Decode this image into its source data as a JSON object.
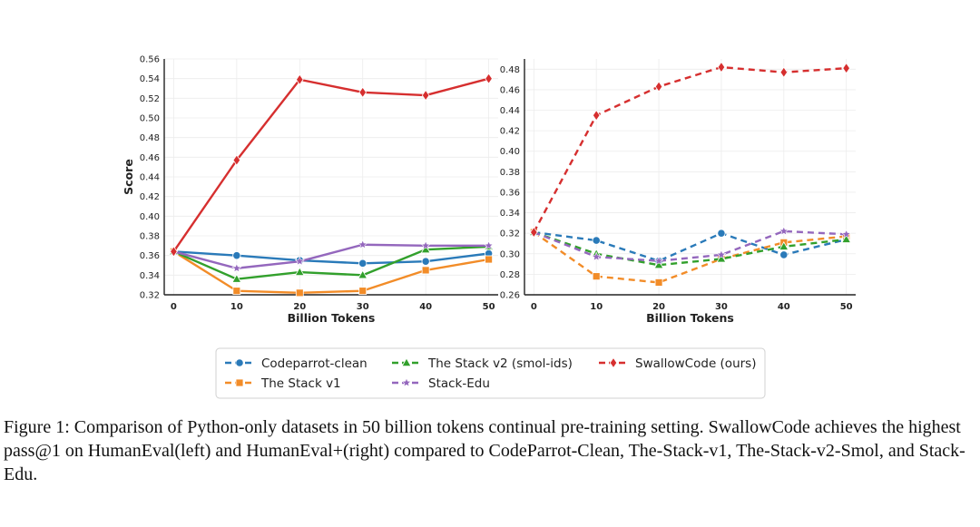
{
  "chart_data": [
    {
      "type": "line",
      "panel": "left",
      "benchmark": "HumanEval",
      "xlabel": "Billion Tokens",
      "ylabel": "Score",
      "x": [
        0,
        10,
        20,
        30,
        40,
        50
      ],
      "xlim": [
        0,
        50
      ],
      "ylim": [
        0.32,
        0.56
      ],
      "yticks": [
        "0.32",
        "0.34",
        "0.36",
        "0.38",
        "0.40",
        "0.42",
        "0.44",
        "0.46",
        "0.48",
        "0.50",
        "0.52",
        "0.54",
        "0.56"
      ],
      "grid": true,
      "series": [
        {
          "name": "Codeparrot-clean",
          "values": [
            0.364,
            0.36,
            0.355,
            0.352,
            0.354,
            0.362
          ]
        },
        {
          "name": "The Stack v1",
          "values": [
            0.364,
            0.324,
            0.322,
            0.324,
            0.345,
            0.356
          ]
        },
        {
          "name": "The Stack v2 (smol-ids)",
          "values": [
            0.364,
            0.336,
            0.343,
            0.34,
            0.366,
            0.369
          ]
        },
        {
          "name": "Stack-Edu",
          "values": [
            0.364,
            0.347,
            0.354,
            0.371,
            0.37,
            0.37
          ]
        },
        {
          "name": "SwallowCode (ours)",
          "values": [
            0.364,
            0.457,
            0.539,
            0.526,
            0.523,
            0.54
          ]
        }
      ]
    },
    {
      "type": "line",
      "panel": "right",
      "benchmark": "HumanEval+",
      "xlabel": "Billion Tokens",
      "ylabel": "",
      "x": [
        0,
        10,
        20,
        30,
        40,
        50
      ],
      "xlim": [
        0,
        50
      ],
      "ylim": [
        0.26,
        0.49
      ],
      "yticks": [
        "0.26",
        "0.28",
        "0.30",
        "0.32",
        "0.34",
        "0.36",
        "0.38",
        "0.40",
        "0.42",
        "0.44",
        "0.46",
        "0.48"
      ],
      "grid": true,
      "series": [
        {
          "name": "Codeparrot-clean",
          "values": [
            0.321,
            0.313,
            0.293,
            0.32,
            0.299,
            0.314
          ]
        },
        {
          "name": "The Stack v1",
          "values": [
            0.321,
            0.278,
            0.272,
            0.295,
            0.311,
            0.317
          ]
        },
        {
          "name": "The Stack v2 (smol-ids)",
          "values": [
            0.321,
            0.3,
            0.289,
            0.295,
            0.307,
            0.314
          ]
        },
        {
          "name": "Stack-Edu",
          "values": [
            0.321,
            0.297,
            0.293,
            0.299,
            0.322,
            0.319
          ]
        },
        {
          "name": "SwallowCode (ours)",
          "values": [
            0.321,
            0.435,
            0.463,
            0.482,
            0.477,
            0.481
          ]
        }
      ]
    }
  ],
  "series_style": [
    {
      "color": "#2a7ab9",
      "marker": "circle"
    },
    {
      "color": "#f28c28",
      "marker": "square"
    },
    {
      "color": "#32a02c",
      "marker": "triangle"
    },
    {
      "color": "#9467bd",
      "marker": "star"
    },
    {
      "color": "#d62f2f",
      "marker": "diamond"
    }
  ],
  "legend": {
    "labels": [
      "Codeparrot-clean",
      "The Stack v1",
      "The Stack v2 (smol-ids)",
      "Stack-Edu",
      "SwallowCode (ours)"
    ]
  },
  "caption": "Figure 1: Comparison of Python-only datasets in 50 billion tokens continual pre-training setting. SwallowCode achieves the highest pass@1 on HumanEval(left) and HumanEval+(right) compared to CodeParrot-Clean, The-Stack-v1, The-Stack-v2-Smol, and Stack-Edu."
}
